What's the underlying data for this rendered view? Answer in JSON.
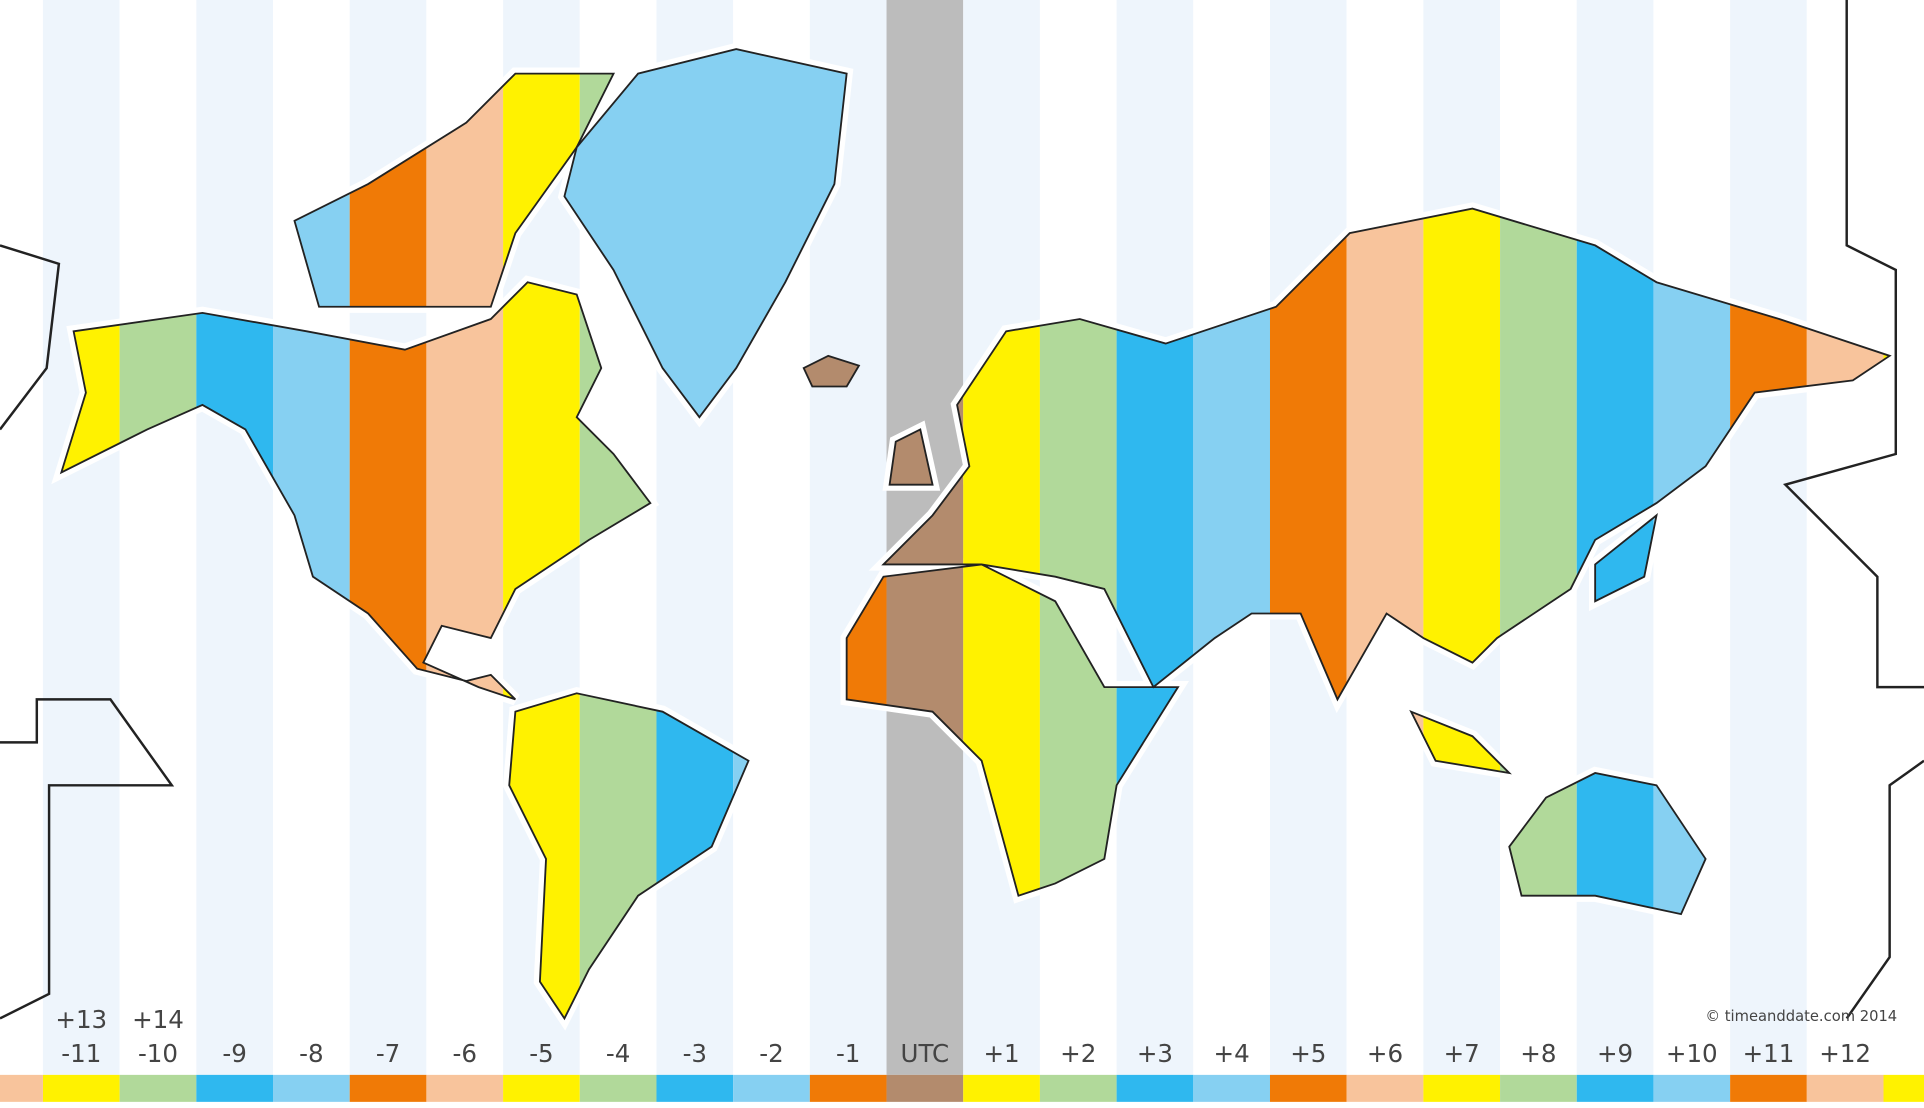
{
  "map": {
    "zones": [
      {
        "label": "-11",
        "color": "#fff200"
      },
      {
        "label": "-10",
        "color": "#b1d99a"
      },
      {
        "label": "-9",
        "color": "#2fb8ef"
      },
      {
        "label": "-8",
        "color": "#86d0f2"
      },
      {
        "label": "-7",
        "color": "#f07a06"
      },
      {
        "label": "-6",
        "color": "#f8c49c"
      },
      {
        "label": "-5",
        "color": "#fff200"
      },
      {
        "label": "-4",
        "color": "#b1d99a"
      },
      {
        "label": "-3",
        "color": "#2fb8ef"
      },
      {
        "label": "-2",
        "color": "#86d0f2"
      },
      {
        "label": "-1",
        "color": "#f07a06"
      },
      {
        "label": "UTC",
        "color": "#b38b6d"
      },
      {
        "label": "+1",
        "color": "#fff200"
      },
      {
        "label": "+2",
        "color": "#b1d99a"
      },
      {
        "label": "+3",
        "color": "#2fb8ef"
      },
      {
        "label": "+4",
        "color": "#86d0f2"
      },
      {
        "label": "+5",
        "color": "#f07a06"
      },
      {
        "label": "+6",
        "color": "#f8c49c"
      },
      {
        "label": "+7",
        "color": "#fff200"
      },
      {
        "label": "+8",
        "color": "#b1d99a"
      },
      {
        "label": "+9",
        "color": "#2fb8ef"
      },
      {
        "label": "+10",
        "color": "#86d0f2"
      },
      {
        "label": "+11",
        "color": "#f07a06"
      },
      {
        "label": "+12",
        "color": "#f8c49c"
      }
    ],
    "extra_labels": [
      "+13",
      "+14"
    ],
    "edge_left_color": "#f8c49c",
    "edge_right_color": "#fff200",
    "copyright": "© timeanddate.com 2014"
  }
}
